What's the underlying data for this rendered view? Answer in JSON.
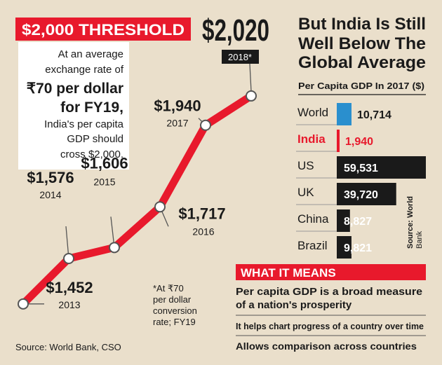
{
  "chart_data": [
    {
      "type": "line",
      "x": [
        "2013",
        "2014",
        "2015",
        "2016",
        "2017",
        "2018*"
      ],
      "values": [
        1452,
        1576,
        1606,
        1717,
        1940,
        2020
      ],
      "value_labels": [
        "$1,452",
        "$1,576",
        "$1,606",
        "$1,717",
        "$1,940",
        "$2,020"
      ],
      "ylim": [
        1400,
        2060
      ],
      "color": "#e8192c",
      "threshold_banner": "$2,000 THRESHOLD",
      "note_lines": [
        "At an average",
        "exchange rate of",
        "₹70 per dollar",
        "for FY19,",
        "India's per capita",
        "GDP should",
        "cross $2,000."
      ],
      "footnote_lines": [
        "*At ₹70",
        "per dollar",
        "conversion",
        "rate; FY19"
      ],
      "source": "Source: World Bank, CSO"
    },
    {
      "type": "bar",
      "title_lines": [
        "But India Is Still",
        "Well Below The",
        "Global Average"
      ],
      "subtitle": "Per Capita GDP In 2017 ($)",
      "categories": [
        "World",
        "India",
        "US",
        "UK",
        "China",
        "Brazil"
      ],
      "values": [
        10714,
        1940,
        59531,
        39720,
        8827,
        9821
      ],
      "value_labels": [
        "10,714",
        "1,940",
        "59,531",
        "39,720",
        "8,827",
        "9,821"
      ],
      "colors": [
        "#2a8fce",
        "#e8192c",
        "#1a1a1a",
        "#1a1a1a",
        "#1a1a1a",
        "#1a1a1a"
      ],
      "highlight": "India",
      "source_lines": [
        "Source: World",
        "Bank"
      ]
    }
  ],
  "what_it_means": {
    "header": "WHAT IT MEANS",
    "points": [
      "Per capita GDP is a broad measure",
      "of a nation's prosperity",
      "It helps chart progress of a country over time",
      "Allows comparison across countries"
    ]
  },
  "colors": {
    "accent": "#e8192c",
    "dark": "#1a1a1a",
    "background": "#eadfcb",
    "world_blue": "#2a8fce"
  }
}
